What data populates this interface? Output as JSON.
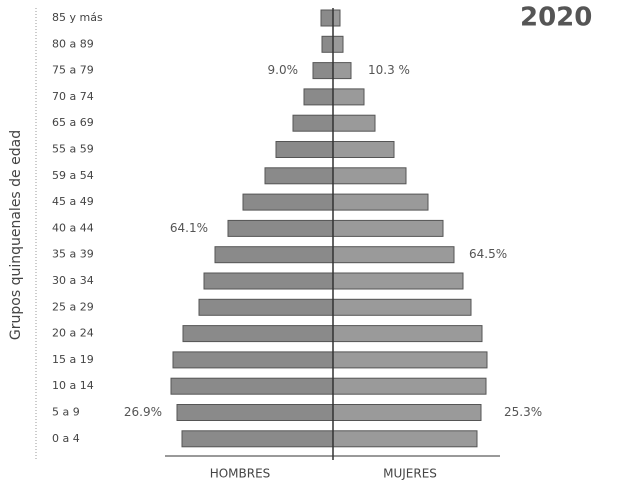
{
  "chart_data": {
    "type": "pyramid",
    "year": "2020",
    "ylabel": "Grupos quinquenales de edad",
    "categories": [
      "85 y más",
      "80 a 89",
      "75 a 79",
      "70 a 74",
      "65 a 69",
      "55 a 59",
      "59 a 54",
      "45 a 49",
      "40 a 44",
      "35 a 39",
      "30 a 34",
      "25 a 29",
      "20 a 24",
      "15 a 19",
      "10 a 14",
      "5 a 9",
      "0 a 4"
    ],
    "series": [
      {
        "name": "HOMBRES",
        "color": "#8a8a8a",
        "values": [
          12,
          11,
          20,
          29,
          40,
          57,
          68,
          90,
          105,
          118,
          129,
          134,
          150,
          160,
          162,
          156,
          151
        ]
      },
      {
        "name": "MUJERES",
        "color": "#9a9a9a",
        "values": [
          7,
          10,
          18,
          31,
          42,
          61,
          73,
          95,
          110,
          121,
          130,
          138,
          149,
          154,
          153,
          148,
          144
        ]
      }
    ],
    "xlim": [
      0,
      170
    ],
    "annotations": [
      {
        "text": "9.0%",
        "side": "left",
        "row": 2
      },
      {
        "text": "10.3 %",
        "side": "right",
        "row": 2
      },
      {
        "text": "64.1%",
        "side": "left",
        "row": 8
      },
      {
        "text": "64.5%",
        "side": "right",
        "row": 9
      },
      {
        "text": "26.9%",
        "side": "left",
        "row": 15
      },
      {
        "text": "25.3%",
        "side": "right",
        "row": 15
      }
    ]
  }
}
